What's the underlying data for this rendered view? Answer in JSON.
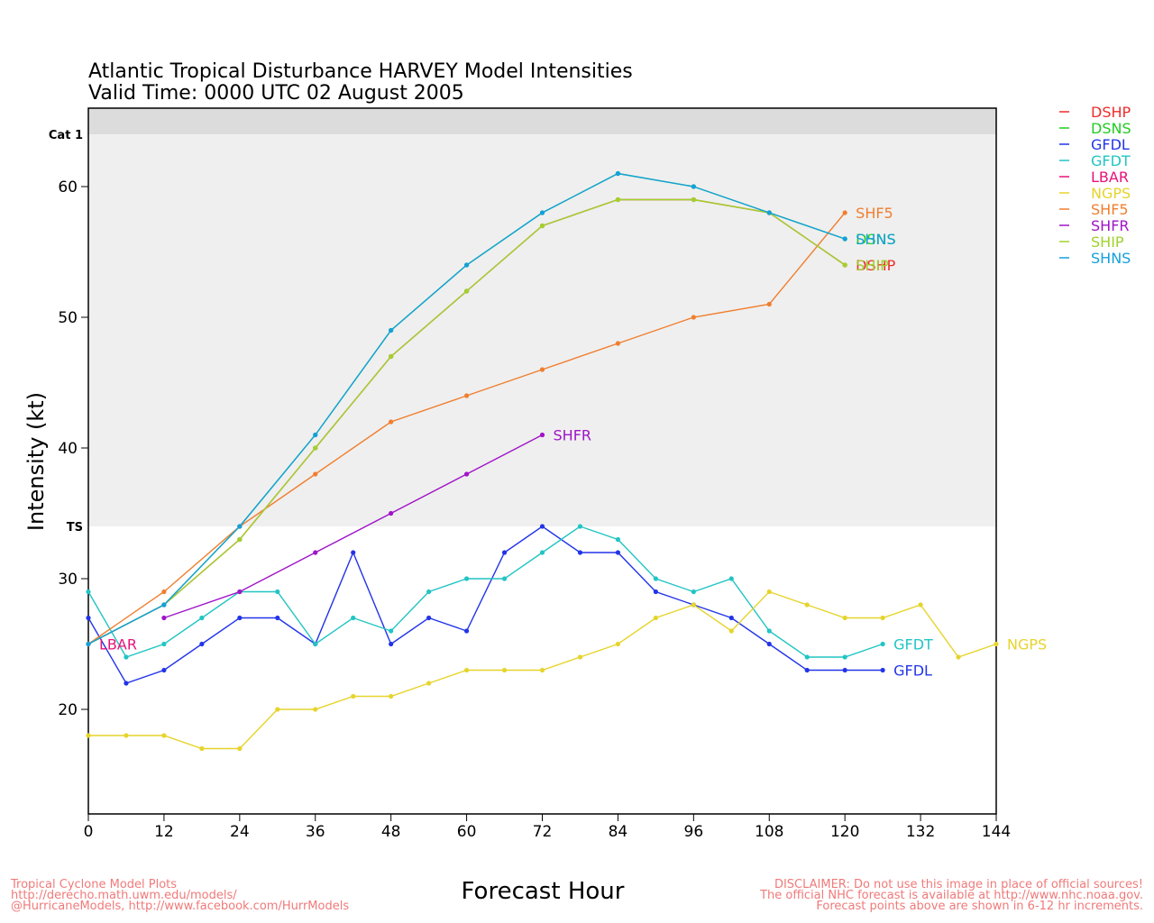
{
  "chart_data": {
    "type": "line",
    "title": "Atlantic Tropical Disturbance HARVEY Model Intensities",
    "subtitle": "Valid Time: 0000 UTC 02 August 2005",
    "xlabel": "Forecast Hour",
    "ylabel": "Intensity (kt)",
    "xlim": [
      0,
      144
    ],
    "ylim": [
      12,
      66
    ],
    "xticks": [
      "0",
      "12",
      "24",
      "36",
      "48",
      "60",
      "72",
      "84",
      "96",
      "108",
      "120",
      "132",
      "144"
    ],
    "yticks": [
      "20",
      "30",
      "40",
      "50",
      "60"
    ],
    "thresholds": [
      {
        "label": "TS",
        "value": 34
      },
      {
        "label": "Cat 1",
        "value": 64
      }
    ],
    "legend_position": "top-right",
    "series": [
      {
        "name": "DSHP",
        "color": "#ee2c2c",
        "x": [
          0,
          12,
          24,
          36,
          48,
          60,
          72,
          84,
          96,
          108,
          120
        ],
        "y": [
          25,
          28,
          33,
          40,
          47,
          52,
          57,
          59,
          59,
          58,
          54
        ],
        "end_label": "DSHP"
      },
      {
        "name": "DSNS",
        "color": "#22cc22",
        "x": [
          0,
          12,
          24,
          36,
          48,
          60,
          72,
          84,
          96,
          108,
          120
        ],
        "y": [
          25,
          28,
          34,
          41,
          49,
          54,
          58,
          61,
          60,
          58,
          56
        ],
        "end_label": "DSNS"
      },
      {
        "name": "GFDL",
        "color": "#2234e8",
        "x": [
          0,
          6,
          12,
          18,
          24,
          30,
          36,
          42,
          48,
          54,
          60,
          66,
          72,
          78,
          84,
          90,
          96,
          102,
          108,
          114,
          120,
          126
        ],
        "y": [
          27,
          22,
          23,
          25,
          27,
          27,
          25,
          32,
          25,
          27,
          26,
          32,
          34,
          32,
          32,
          29,
          28,
          27,
          25,
          23,
          23,
          23
        ],
        "end_label": "GFDL"
      },
      {
        "name": "GFDT",
        "color": "#22c4c4",
        "x": [
          0,
          6,
          12,
          18,
          24,
          30,
          36,
          42,
          48,
          54,
          60,
          66,
          72,
          78,
          84,
          90,
          96,
          102,
          108,
          114,
          120,
          126
        ],
        "y": [
          29,
          24,
          25,
          27,
          29,
          29,
          25,
          27,
          26,
          29,
          30,
          30,
          32,
          34,
          33,
          30,
          29,
          30,
          26,
          24,
          24,
          25
        ],
        "end_label": "GFDT"
      },
      {
        "name": "LBAR",
        "color": "#e8127a",
        "x": [
          0
        ],
        "y": [
          25
        ],
        "end_label": "LBAR"
      },
      {
        "name": "NGPS",
        "color": "#e6d42c",
        "x": [
          0,
          6,
          12,
          18,
          24,
          30,
          36,
          42,
          48,
          54,
          60,
          66,
          72,
          78,
          84,
          90,
          96,
          102,
          108,
          114,
          120,
          126,
          132,
          138,
          144
        ],
        "y": [
          18,
          18,
          18,
          17,
          17,
          20,
          20,
          21,
          21,
          22,
          23,
          23,
          23,
          24,
          25,
          27,
          28,
          26,
          29,
          28,
          27,
          27,
          28,
          24,
          25
        ],
        "end_label": "NGPS"
      },
      {
        "name": "SHF5",
        "color": "#f07e2e",
        "x": [
          0,
          12,
          24,
          36,
          48,
          60,
          72,
          84,
          96,
          108,
          120
        ],
        "y": [
          25,
          29,
          34,
          38,
          42,
          44,
          46,
          48,
          50,
          51,
          58
        ],
        "end_label": "SHF5"
      },
      {
        "name": "SHFR",
        "color": "#a014c8",
        "x": [
          12,
          24,
          36,
          48,
          60,
          72
        ],
        "y": [
          27,
          29,
          32,
          35,
          38,
          41
        ],
        "end_label": "SHFR"
      },
      {
        "name": "SHIP",
        "color": "#a0d22c",
        "x": [
          0,
          12,
          24,
          36,
          48,
          60,
          72,
          84,
          96,
          108,
          120
        ],
        "y": [
          25,
          28,
          33,
          40,
          47,
          52,
          57,
          59,
          59,
          58,
          54
        ],
        "end_label": "SHIP"
      },
      {
        "name": "SHNS",
        "color": "#14a0dc",
        "x": [
          0,
          12,
          24,
          36,
          48,
          60,
          72,
          84,
          96,
          108,
          120
        ],
        "y": [
          25,
          28,
          34,
          41,
          49,
          54,
          58,
          61,
          60,
          58,
          56
        ],
        "end_label": "SHNS"
      }
    ]
  },
  "footer": {
    "left": "Tropical Cyclone Model Plots\nhttp://derecho.math.uwm.edu/models/\n@HurricaneModels, http://www.facebook.com/HurrModels",
    "right": "DISCLAIMER: Do not use this image in place of official sources!\nThe official NHC forecast is available at http://www.nhc.noaa.gov.\nForecast points above are shown in 6-12 hr increments."
  }
}
